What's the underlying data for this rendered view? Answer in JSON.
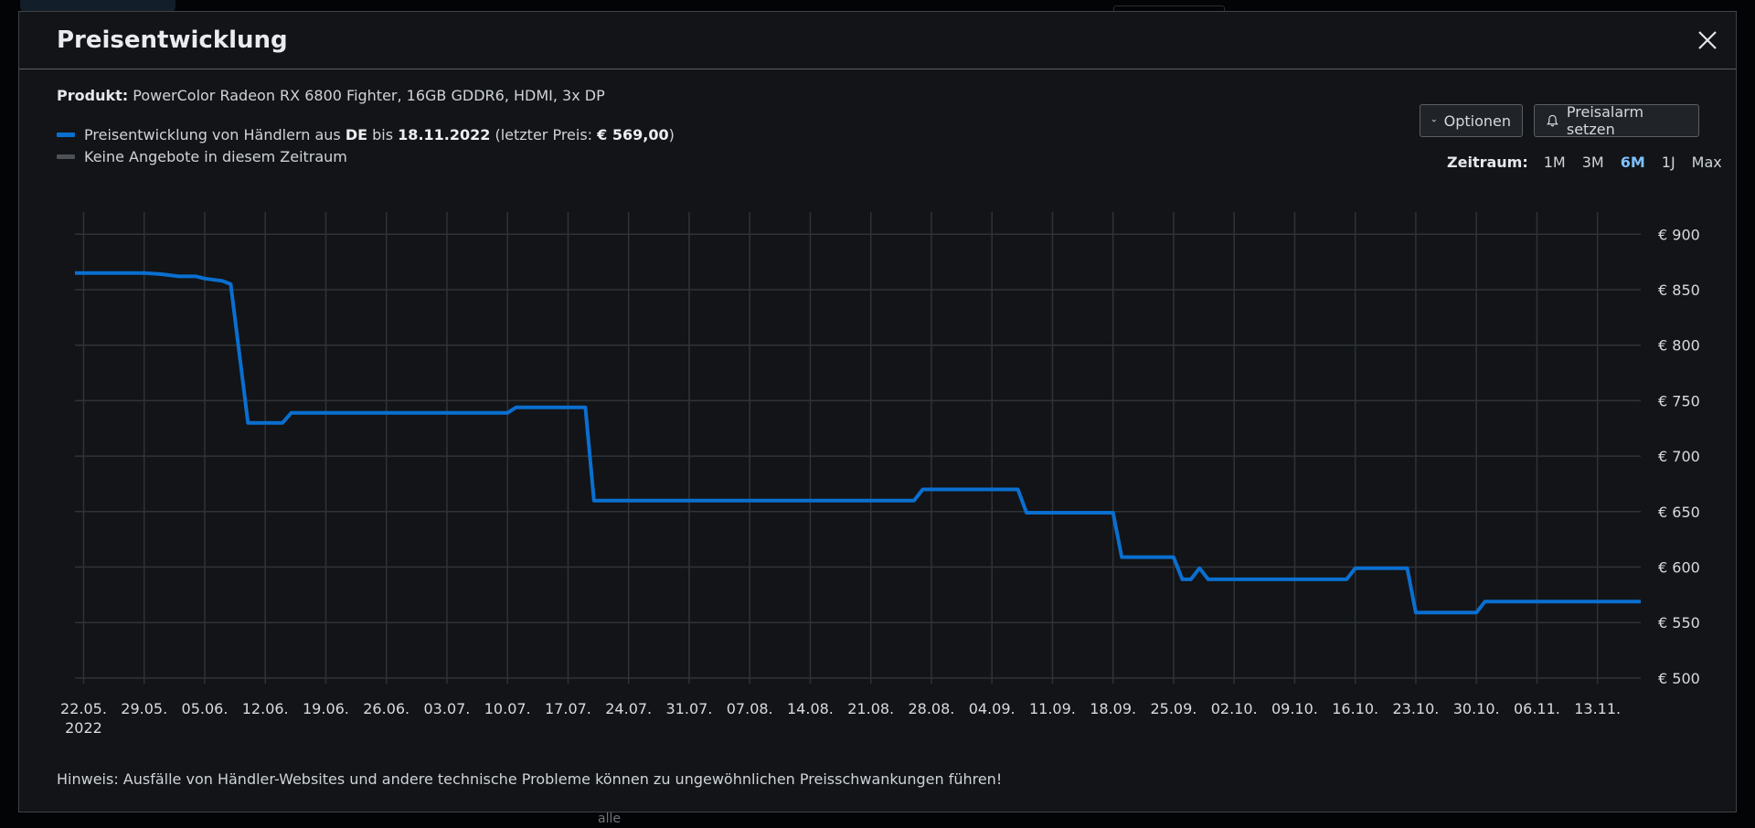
{
  "background": {
    "obscured_label": "alle"
  },
  "modal": {
    "title": "Preisentwicklung",
    "product_label": "Produkt:",
    "product_name": "PowerColor Radeon RX 6800 Fighter, 16GB GDDR6, HDMI, 3x DP",
    "legend": {
      "series_prefix": "Preisentwicklung von Händlern aus ",
      "country": "DE",
      "until_text": " bis ",
      "date": "18.11.2022",
      "last_price_prefix": " (letzter Preis: ",
      "last_price": "€ 569,00",
      "last_price_suffix": ")",
      "no_offers": "Keine Angebote in diesem Zeitraum",
      "series_color": "#0a6fd0",
      "no_offers_color": "#4d5157"
    },
    "buttons": {
      "options": "Optionen",
      "alarm": "Preisalarm setzen"
    },
    "zeitraum": {
      "label": "Zeitraum:",
      "options": [
        "1M",
        "3M",
        "6M",
        "1J",
        "Max"
      ],
      "active": "6M"
    },
    "note": "Hinweis: Ausfälle von Händler-Websites und andere technische Probleme können zu ungewöhnlichen Preisschwankungen führen!"
  },
  "chart_data": {
    "type": "line",
    "x_tick_labels": [
      "22.05.",
      "29.05.",
      "05.06.",
      "12.06.",
      "19.06.",
      "26.06.",
      "03.07.",
      "10.07.",
      "17.07.",
      "24.07.",
      "31.07.",
      "07.08.",
      "14.08.",
      "21.08.",
      "28.08.",
      "04.09.",
      "11.09.",
      "18.09.",
      "25.09.",
      "02.10.",
      "09.10.",
      "16.10.",
      "23.10.",
      "30.10.",
      "06.11.",
      "13.11."
    ],
    "x_sub_label": "2022",
    "y_ticks": [
      500,
      550,
      600,
      650,
      700,
      750,
      800,
      850,
      900
    ],
    "y_tick_labels": [
      "€ 500",
      "€ 550",
      "€ 600",
      "€ 650",
      "€ 700",
      "€ 750",
      "€ 800",
      "€ 850",
      "€ 900"
    ],
    "ylim": [
      495,
      920
    ],
    "grid": true,
    "series": [
      {
        "color": "#0a6fd0",
        "x": [
          "21.05.",
          "29.05.",
          "31.05.",
          "02.06.",
          "04.06.",
          "05.06.",
          "07.06.",
          "08.06.",
          "10.06.",
          "11.06.",
          "14.06.",
          "15.06.",
          "06.07.",
          "10.07.",
          "11.07.",
          "19.07.",
          "20.07.",
          "26.08.",
          "27.08.",
          "07.09.",
          "08.09.",
          "18.09.",
          "19.09.",
          "25.09.",
          "26.09.",
          "27.09.",
          "28.09.",
          "29.09.",
          "15.10.",
          "16.10.",
          "22.10.",
          "23.10.",
          "30.10.",
          "31.10.",
          "18.11."
        ],
        "y": [
          865,
          865,
          864,
          862,
          862,
          860,
          858,
          855,
          730,
          730,
          730,
          739,
          739,
          739,
          744,
          744,
          660,
          660,
          670,
          670,
          649,
          649,
          609,
          609,
          589,
          589,
          599,
          589,
          589,
          599,
          599,
          559,
          559,
          569,
          569
        ]
      }
    ]
  }
}
